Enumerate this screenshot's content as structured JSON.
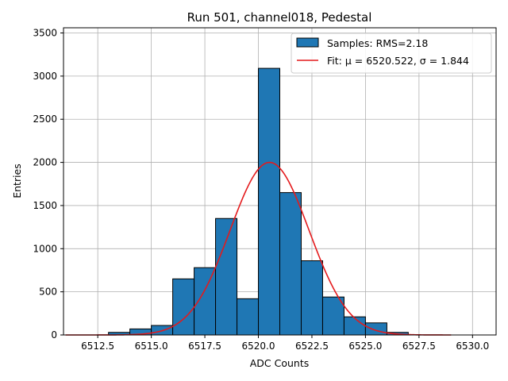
{
  "chart_data": {
    "type": "bar",
    "title": "Run 501, channel018, Pedestal",
    "xlabel": "ADC Counts",
    "ylabel": "Entries",
    "xlim": [
      6510.9,
      6531.1
    ],
    "ylim": [
      0,
      3560
    ],
    "grid": true,
    "legend_position": "top-right",
    "xticks": [
      6512.5,
      6515.0,
      6517.5,
      6520.0,
      6522.5,
      6525.0,
      6527.5,
      6530.0
    ],
    "xtick_labels": [
      "6512.5",
      "6515.0",
      "6517.5",
      "6520.0",
      "6522.5",
      "6525.0",
      "6527.5",
      "6530.0"
    ],
    "yticks": [
      0,
      500,
      1000,
      1500,
      2000,
      2500,
      3000,
      3500
    ],
    "ytick_labels": [
      "0",
      "500",
      "1000",
      "1500",
      "2000",
      "2500",
      "3000",
      "3500"
    ],
    "bin_edges": [
      6511,
      6512,
      6513,
      6514,
      6515,
      6516,
      6517,
      6518,
      6519,
      6520,
      6521,
      6522,
      6523,
      6524,
      6525,
      6526,
      6527,
      6528,
      6529,
      6530,
      6531
    ],
    "counts": [
      0,
      0,
      30,
      70,
      110,
      650,
      780,
      1350,
      420,
      3090,
      1650,
      860,
      440,
      210,
      140,
      30,
      0,
      0,
      0,
      0
    ],
    "series": [
      {
        "name": "Samples: RMS=2.18",
        "kind": "histogram",
        "color": "#1f77b4"
      },
      {
        "name": "Fit: μ = 6520.522, σ = 1.844",
        "kind": "line",
        "color": "#e41a1c",
        "mu": 6520.522,
        "sigma": 1.844,
        "amplitude": 2000,
        "x_range": [
          6511,
          6529
        ]
      }
    ]
  }
}
